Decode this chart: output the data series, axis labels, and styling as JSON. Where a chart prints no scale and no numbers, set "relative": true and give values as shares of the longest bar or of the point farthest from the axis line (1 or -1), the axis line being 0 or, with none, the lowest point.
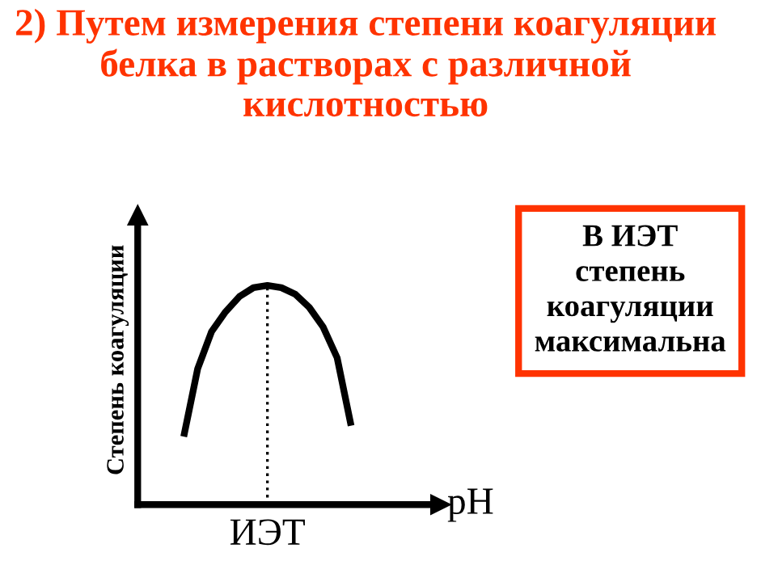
{
  "chart_data": {
    "type": "line",
    "relative": true,
    "title": "2) Путем измерения степени коагуляции белка в растворах с различной кислотностью",
    "xlabel": "pH",
    "ylabel": "Степень коагуляции",
    "categories": [
      null,
      null,
      null,
      null,
      null,
      null,
      null,
      null,
      null,
      null,
      null,
      null,
      null
    ],
    "series": [
      {
        "color": "#000000",
        "values": [
          0.31,
          0.62,
          0.79,
          0.88,
          0.95,
          0.99,
          1,
          0.99,
          0.96,
          0.9,
          0.81,
          0.67,
          0.36
        ]
      }
    ],
    "annotations": [
      "В ИЭТ\nстепень\nкоагуляции\nмаксимальна",
      "ИЭТ"
    ]
  }
}
